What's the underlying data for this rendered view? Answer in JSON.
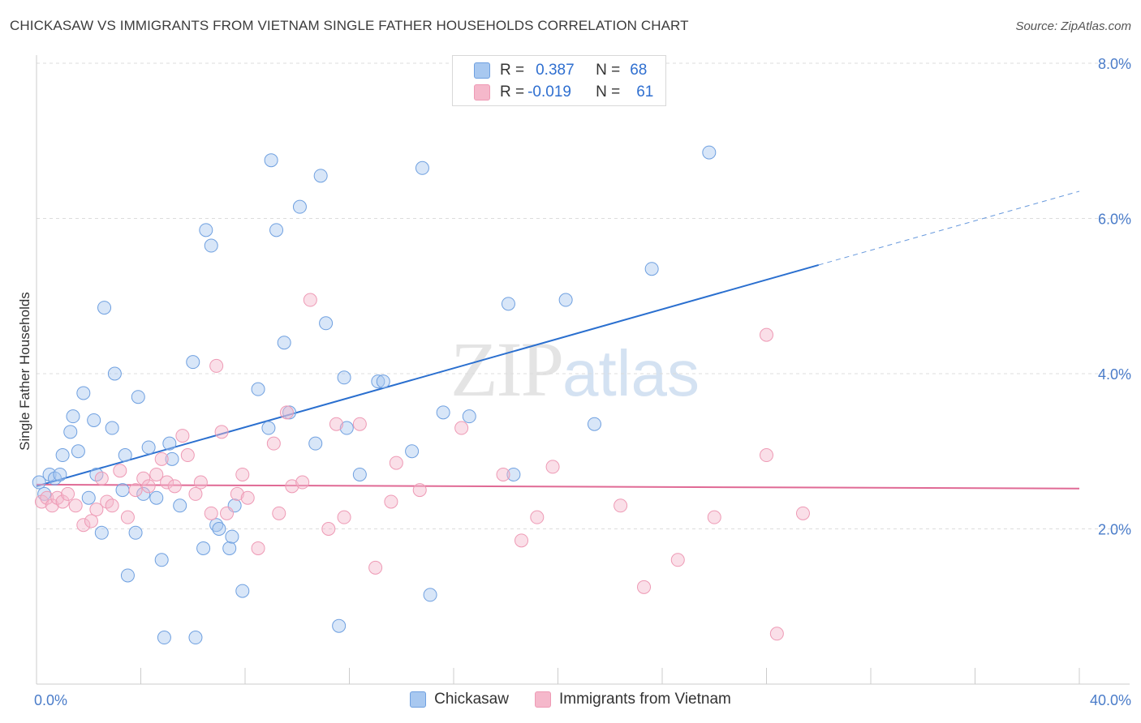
{
  "header": {
    "title": "CHICKASAW VS IMMIGRANTS FROM VIETNAM SINGLE FATHER HOUSEHOLDS CORRELATION CHART",
    "source": "Source: ZipAtlas.com"
  },
  "watermark": {
    "zip": "ZIP",
    "atlas": "atlas"
  },
  "legend": {
    "rows": [
      {
        "r_label": "R =",
        "r_value": "0.387",
        "n_label": "N =",
        "n_value": "68",
        "color": "#a8c8f0"
      },
      {
        "r_label": "R =",
        "r_value": "-0.019",
        "n_label": "N =",
        "n_value": "61",
        "color": "#f5b8cb"
      }
    ]
  },
  "bottom_legend": [
    {
      "label": "Chickasaw",
      "color": "#a8c8f0"
    },
    {
      "label": "Immigrants from Vietnam",
      "color": "#f5b8cb"
    }
  ],
  "chart_data": {
    "type": "scatter",
    "title": "CHICKASAW VS IMMIGRANTS FROM VIETNAM SINGLE FATHER HOUSEHOLDS CORRELATION CHART",
    "ylabel": "Single Father Households",
    "xlabel": "",
    "xlim": [
      0,
      40
    ],
    "ylim": [
      0,
      8
    ],
    "x_tick_labels": [
      "0.0%",
      "40.0%"
    ],
    "y_tick_labels": [
      "2.0%",
      "4.0%",
      "6.0%",
      "8.0%"
    ],
    "y_ticks": [
      2,
      4,
      6,
      8
    ],
    "grid": true,
    "legend_position": "top-center",
    "series": [
      {
        "name": "Chickasaw",
        "color": "#6fa0e0",
        "fill": "#a8c8f0",
        "trend": {
          "x0": 0,
          "y0": 2.55,
          "x1": 30,
          "y1": 5.4,
          "dash_x1": 40,
          "dash_y1": 6.35,
          "color": "#2a6fcf"
        },
        "points": [
          [
            0.3,
            2.45
          ],
          [
            0.5,
            2.7
          ],
          [
            0.7,
            2.65
          ],
          [
            0.9,
            2.7
          ],
          [
            1.0,
            2.95
          ],
          [
            1.3,
            3.25
          ],
          [
            1.4,
            3.45
          ],
          [
            1.6,
            3.0
          ],
          [
            1.8,
            3.75
          ],
          [
            2.0,
            2.4
          ],
          [
            2.2,
            3.4
          ],
          [
            2.3,
            2.7
          ],
          [
            2.5,
            1.95
          ],
          [
            2.6,
            4.85
          ],
          [
            2.9,
            3.3
          ],
          [
            3.0,
            4.0
          ],
          [
            3.3,
            2.5
          ],
          [
            3.4,
            2.95
          ],
          [
            3.8,
            1.95
          ],
          [
            3.9,
            3.7
          ],
          [
            3.5,
            1.4
          ],
          [
            4.1,
            2.45
          ],
          [
            4.3,
            3.05
          ],
          [
            4.6,
            2.4
          ],
          [
            4.8,
            1.6
          ],
          [
            4.9,
            0.6
          ],
          [
            5.1,
            3.1
          ],
          [
            5.2,
            2.9
          ],
          [
            5.5,
            2.3
          ],
          [
            6.0,
            4.15
          ],
          [
            6.1,
            0.6
          ],
          [
            6.4,
            1.75
          ],
          [
            6.5,
            5.85
          ],
          [
            6.7,
            5.65
          ],
          [
            6.9,
            2.05
          ],
          [
            7.0,
            2.0
          ],
          [
            7.4,
            1.75
          ],
          [
            7.5,
            1.9
          ],
          [
            7.6,
            2.3
          ],
          [
            7.9,
            1.2
          ],
          [
            8.5,
            3.8
          ],
          [
            8.9,
            3.3
          ],
          [
            9.0,
            6.75
          ],
          [
            9.2,
            5.85
          ],
          [
            9.5,
            4.4
          ],
          [
            9.7,
            3.5
          ],
          [
            10.1,
            6.15
          ],
          [
            10.7,
            3.1
          ],
          [
            10.9,
            6.55
          ],
          [
            11.1,
            4.65
          ],
          [
            11.6,
            0.75
          ],
          [
            11.8,
            3.95
          ],
          [
            11.9,
            3.3
          ],
          [
            12.4,
            2.7
          ],
          [
            13.1,
            3.9
          ],
          [
            13.3,
            3.9
          ],
          [
            14.4,
            3.0
          ],
          [
            14.8,
            6.65
          ],
          [
            15.1,
            1.15
          ],
          [
            15.6,
            3.5
          ],
          [
            16.6,
            3.45
          ],
          [
            18.1,
            4.9
          ],
          [
            18.3,
            2.7
          ],
          [
            20.3,
            4.95
          ],
          [
            21.4,
            3.35
          ],
          [
            23.6,
            5.35
          ],
          [
            25.8,
            6.85
          ],
          [
            0.1,
            2.6
          ]
        ]
      },
      {
        "name": "Immigrants from Vietnam",
        "color": "#ee9ab5",
        "fill": "#f5b8cb",
        "trend": {
          "x0": 0,
          "y0": 2.57,
          "x1": 40,
          "y1": 2.52,
          "color": "#e06a95"
        },
        "points": [
          [
            0.2,
            2.35
          ],
          [
            0.4,
            2.4
          ],
          [
            0.6,
            2.3
          ],
          [
            0.8,
            2.4
          ],
          [
            1.0,
            2.35
          ],
          [
            1.2,
            2.45
          ],
          [
            1.5,
            2.3
          ],
          [
            1.8,
            2.05
          ],
          [
            2.1,
            2.1
          ],
          [
            2.3,
            2.25
          ],
          [
            2.5,
            2.65
          ],
          [
            2.7,
            2.35
          ],
          [
            2.9,
            2.3
          ],
          [
            3.2,
            2.75
          ],
          [
            3.5,
            2.15
          ],
          [
            3.8,
            2.5
          ],
          [
            4.1,
            2.65
          ],
          [
            4.3,
            2.55
          ],
          [
            4.6,
            2.7
          ],
          [
            4.8,
            2.9
          ],
          [
            5.0,
            2.6
          ],
          [
            5.3,
            2.55
          ],
          [
            5.6,
            3.2
          ],
          [
            5.8,
            2.95
          ],
          [
            6.1,
            2.45
          ],
          [
            6.3,
            2.6
          ],
          [
            6.7,
            2.2
          ],
          [
            6.9,
            4.1
          ],
          [
            7.1,
            3.25
          ],
          [
            7.3,
            2.2
          ],
          [
            7.7,
            2.45
          ],
          [
            7.9,
            2.7
          ],
          [
            8.1,
            2.4
          ],
          [
            8.5,
            1.75
          ],
          [
            9.1,
            3.1
          ],
          [
            9.3,
            2.2
          ],
          [
            9.6,
            3.5
          ],
          [
            9.8,
            2.55
          ],
          [
            10.2,
            2.6
          ],
          [
            10.5,
            4.95
          ],
          [
            11.2,
            2.0
          ],
          [
            11.5,
            3.35
          ],
          [
            11.8,
            2.15
          ],
          [
            12.4,
            3.35
          ],
          [
            13.0,
            1.5
          ],
          [
            13.6,
            2.35
          ],
          [
            13.8,
            2.85
          ],
          [
            14.7,
            2.5
          ],
          [
            16.3,
            3.3
          ],
          [
            17.9,
            2.7
          ],
          [
            18.6,
            1.85
          ],
          [
            19.2,
            2.15
          ],
          [
            19.8,
            2.8
          ],
          [
            22.4,
            2.3
          ],
          [
            23.3,
            1.25
          ],
          [
            24.6,
            1.6
          ],
          [
            26.0,
            2.15
          ],
          [
            28.0,
            4.5
          ],
          [
            28.0,
            2.95
          ],
          [
            28.4,
            0.65
          ],
          [
            29.4,
            2.2
          ]
        ]
      }
    ]
  }
}
